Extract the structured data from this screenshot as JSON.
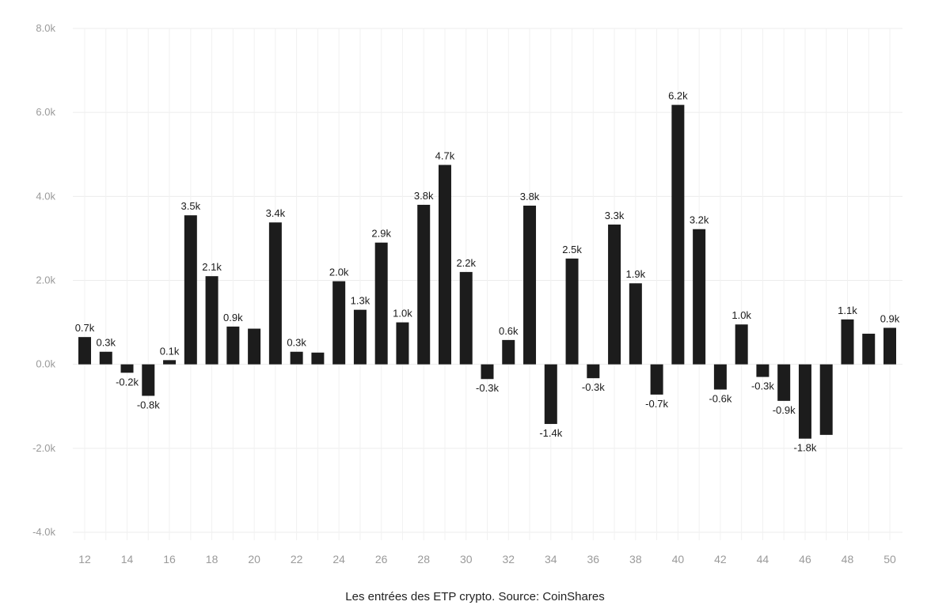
{
  "chart_data": {
    "type": "bar",
    "categories": [
      "12",
      "13",
      "14",
      "15",
      "16",
      "17",
      "18",
      "19",
      "20",
      "21",
      "22",
      "23",
      "24",
      "25",
      "26",
      "27",
      "28",
      "29",
      "30",
      "31",
      "32",
      "33",
      "34",
      "35",
      "36",
      "37",
      "38",
      "39",
      "40",
      "41",
      "42",
      "43",
      "44",
      "45",
      "46",
      "47",
      "48",
      "49",
      "50"
    ],
    "x_tick_labels": [
      "12",
      "14",
      "16",
      "18",
      "20",
      "22",
      "24",
      "26",
      "28",
      "30",
      "32",
      "34",
      "36",
      "38",
      "40",
      "42",
      "44",
      "46",
      "48",
      "50"
    ],
    "values": [
      0.65,
      0.3,
      -0.2,
      -0.75,
      0.1,
      3.55,
      2.1,
      0.9,
      0.85,
      3.38,
      0.3,
      0.28,
      1.98,
      1.3,
      2.9,
      1.0,
      3.8,
      4.75,
      2.2,
      -0.35,
      0.58,
      3.78,
      -1.42,
      2.52,
      -0.33,
      3.33,
      1.93,
      -0.72,
      6.18,
      3.22,
      -0.6,
      0.95,
      -0.3,
      -0.87,
      -1.77,
      -1.68,
      1.07,
      0.73,
      0.87
    ],
    "data_labels": [
      "0.7k",
      "0.3k",
      "-0.2k",
      "-0.8k",
      "0.1k",
      "3.5k",
      "2.1k",
      "0.9k",
      "",
      "3.4k",
      "0.3k",
      "",
      "2.0k",
      "1.3k",
      "2.9k",
      "1.0k",
      "3.8k",
      "4.7k",
      "2.2k",
      "-0.3k",
      "0.6k",
      "3.8k",
      "-1.4k",
      "2.5k",
      "-0.3k",
      "3.3k",
      "1.9k",
      "-0.7k",
      "6.2k",
      "3.2k",
      "-0.6k",
      "1.0k",
      "-0.3k",
      "-0.9k",
      "-1.8k",
      "",
      "1.1k",
      "",
      "0.9k"
    ],
    "y_ticks": [
      8,
      6,
      4,
      2,
      0,
      -2,
      -4
    ],
    "y_tick_labels": [
      "8.0k",
      "6.0k",
      "4.0k",
      "2.0k",
      "0.0k",
      "-2.0k",
      "-4.0k"
    ],
    "ylim": [
      -4,
      8
    ],
    "grid": true,
    "bar_color": "#1c1c1c"
  },
  "caption": "Les entrées des ETP crypto. Source: CoinShares"
}
